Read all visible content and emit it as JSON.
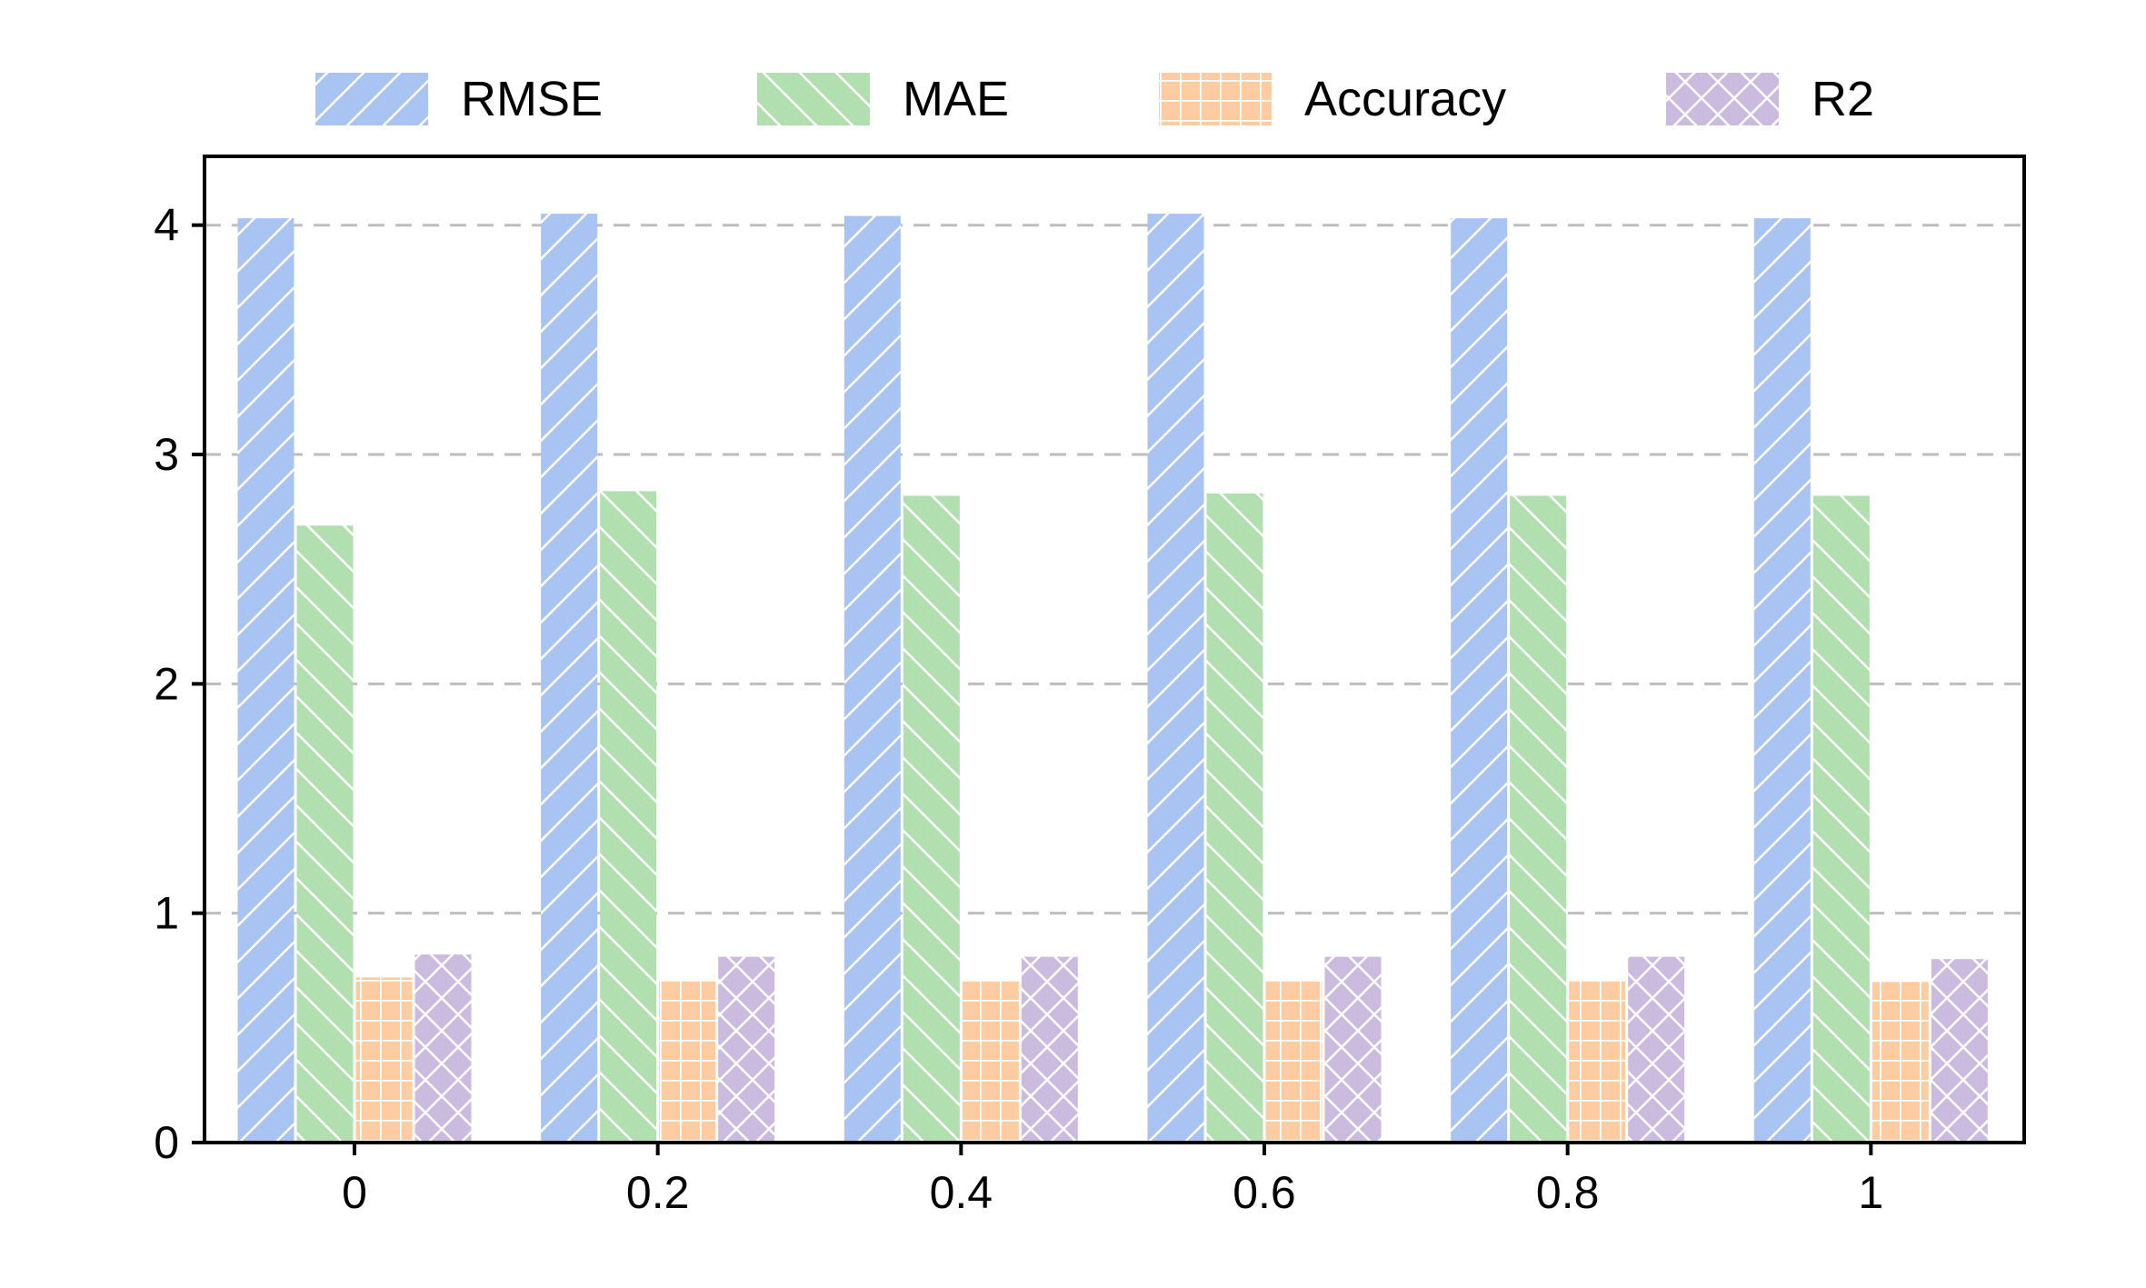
{
  "chart_data": {
    "type": "bar",
    "title": "",
    "xlabel": "",
    "ylabel": "",
    "categories": [
      "0",
      "0.2",
      "0.4",
      "0.6",
      "0.8",
      "1"
    ],
    "ylim": [
      0,
      4.3
    ],
    "yticks": [
      0,
      1,
      2,
      3,
      4
    ],
    "grid": "horizontal dashed",
    "legend_position": "top",
    "series": [
      {
        "name": "RMSE",
        "color": "#a9c4f2",
        "pattern": "diagonal-forward",
        "values": [
          4.03,
          4.05,
          4.04,
          4.05,
          4.03,
          4.03
        ]
      },
      {
        "name": "MAE",
        "color": "#b2dfb0",
        "pattern": "diagonal-back",
        "values": [
          2.69,
          2.84,
          2.82,
          2.83,
          2.82,
          2.82
        ]
      },
      {
        "name": "Accuracy",
        "color": "#fdcca3",
        "pattern": "grid",
        "values": [
          0.72,
          0.71,
          0.71,
          0.71,
          0.71,
          0.7
        ]
      },
      {
        "name": "R2",
        "color": "#cbbbdf",
        "pattern": "crosshatch",
        "values": [
          0.82,
          0.81,
          0.81,
          0.81,
          0.81,
          0.8
        ]
      }
    ]
  }
}
